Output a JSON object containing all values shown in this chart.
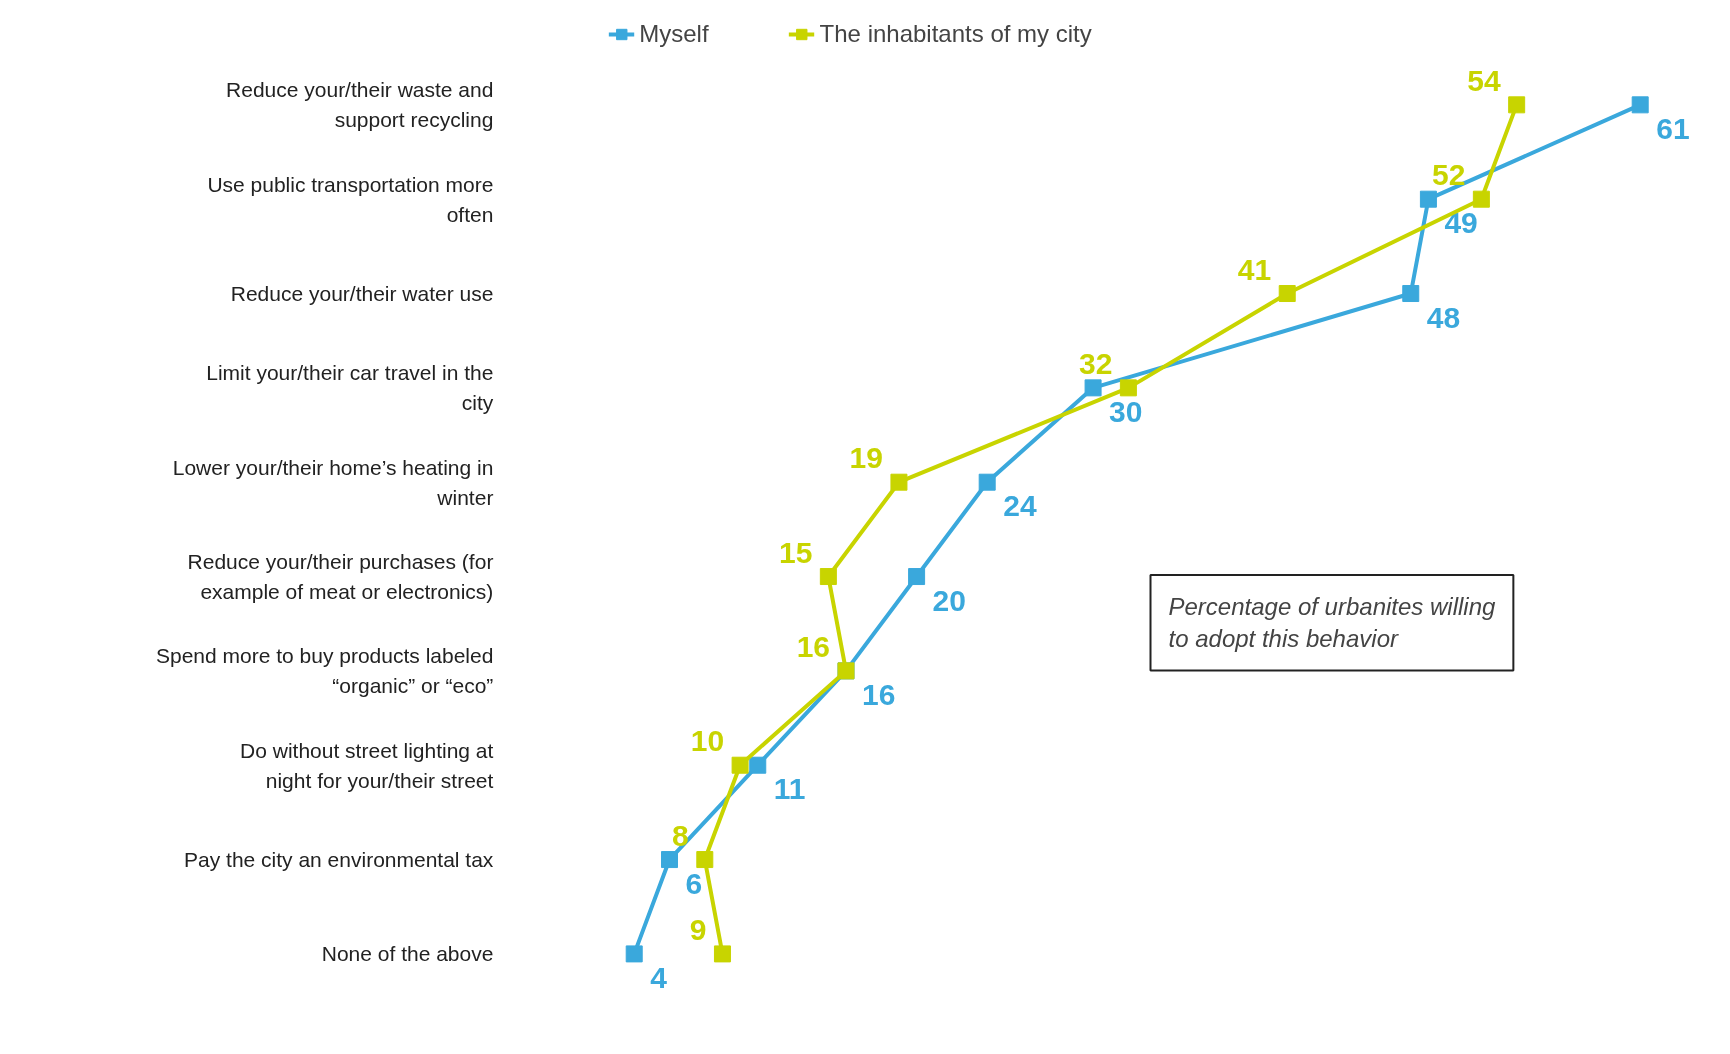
{
  "chart_data": {
    "type": "line",
    "orientation": "horizontal",
    "categories": [
      "Reduce your/their waste and support recycling",
      "Use public transportation more often",
      "Reduce your/their water use",
      "Limit your/their car travel in the city",
      "Lower your/their home’s heating in winter",
      "Reduce your/their purchases (for example of meat or electronics)",
      "Spend more to buy products labeled “organic” or “eco”",
      "Do without street lighting at night for your/their street",
      "Pay the city an environmental tax",
      "None of the above"
    ],
    "series": [
      {
        "name": "Myself",
        "color": "#3aa8dc",
        "values": [
          61,
          49,
          48,
          30,
          24,
          20,
          16,
          11,
          6,
          4
        ]
      },
      {
        "name": "The inhabitants of my city",
        "color": "#c8d400",
        "values": [
          54,
          52,
          41,
          32,
          19,
          15,
          16,
          10,
          8,
          9
        ]
      }
    ],
    "tick_labels": "y",
    "grid": false,
    "legend": "top",
    "marker": "square",
    "line_style": "solid",
    "data_labels": true,
    "annotations": [
      "Percentage of urbanites willing to adopt this behavior"
    ]
  }
}
